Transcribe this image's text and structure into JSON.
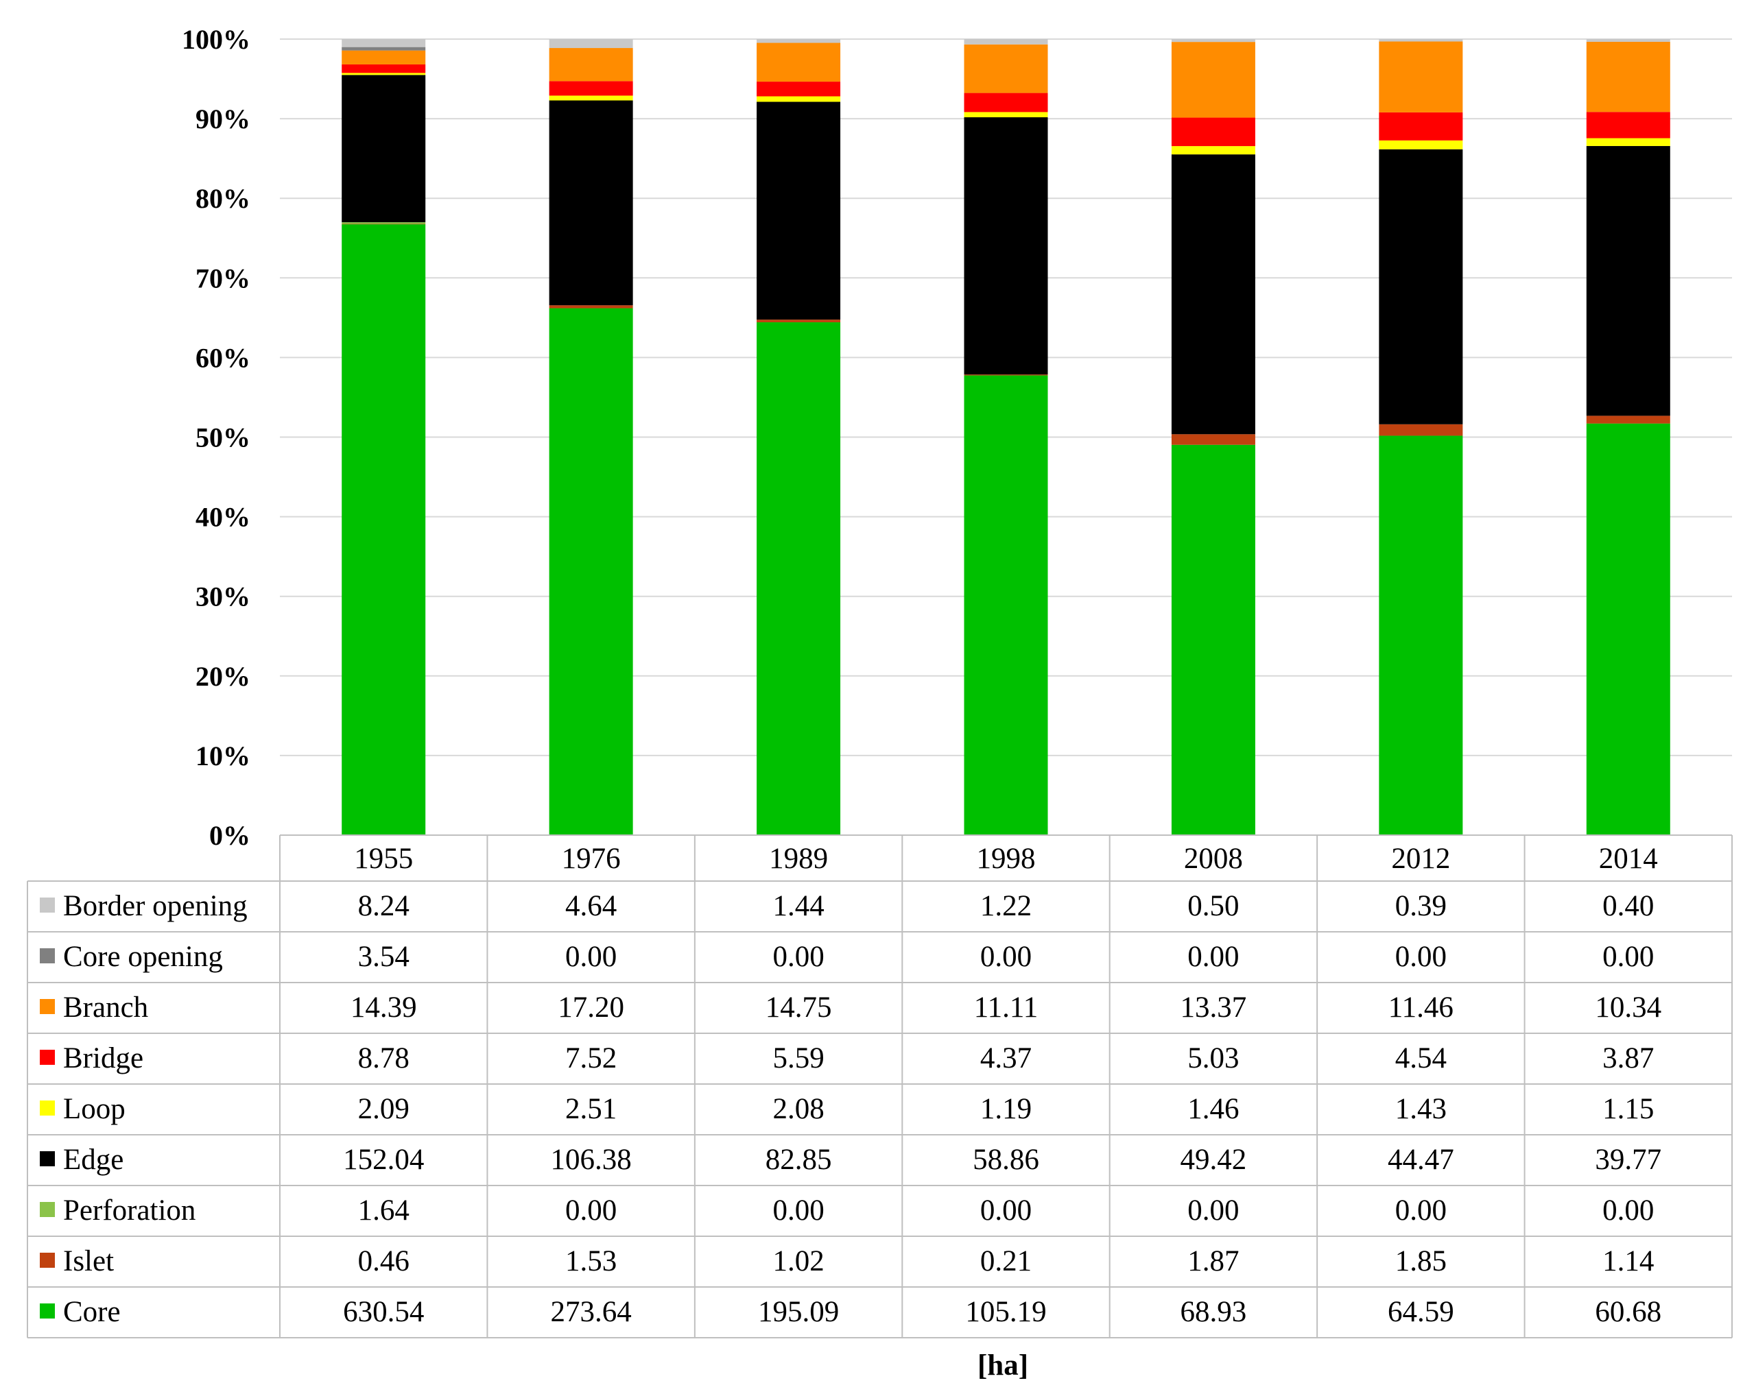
{
  "chart_data": {
    "type": "bar",
    "stacked": "percent",
    "categories": [
      "1955",
      "1976",
      "1989",
      "1998",
      "2008",
      "2012",
      "2014"
    ],
    "series_bottom_to_top": [
      {
        "name": "Core",
        "color": "#00c000",
        "values": [
          630.54,
          273.64,
          195.09,
          105.19,
          68.93,
          64.59,
          60.68
        ]
      },
      {
        "name": "Islet",
        "color": "#c0420f",
        "values": [
          0.46,
          1.53,
          1.02,
          0.21,
          1.87,
          1.85,
          1.14
        ]
      },
      {
        "name": "Perforation",
        "color": "#8bc34a",
        "values": [
          1.64,
          0.0,
          0.0,
          0.0,
          0.0,
          0.0,
          0.0
        ]
      },
      {
        "name": "Edge",
        "color": "#000000",
        "values": [
          152.04,
          106.38,
          82.85,
          58.86,
          49.42,
          44.47,
          39.77
        ]
      },
      {
        "name": "Loop",
        "color": "#ffff00",
        "values": [
          2.09,
          2.51,
          2.08,
          1.19,
          1.46,
          1.43,
          1.15
        ]
      },
      {
        "name": "Bridge",
        "color": "#ff0000",
        "values": [
          8.78,
          7.52,
          5.59,
          4.37,
          5.03,
          4.54,
          3.87
        ]
      },
      {
        "name": "Branch",
        "color": "#ff8c00",
        "values": [
          14.39,
          17.2,
          14.75,
          11.11,
          13.37,
          11.46,
          10.34
        ]
      },
      {
        "name": "Core opening",
        "color": "#808080",
        "values": [
          3.54,
          0.0,
          0.0,
          0.0,
          0.0,
          0.0,
          0.0
        ]
      },
      {
        "name": "Border opening",
        "color": "#c8c8c8",
        "values": [
          8.24,
          4.64,
          1.44,
          1.22,
          0.5,
          0.39,
          0.4
        ]
      }
    ],
    "table_rows_top_to_bottom": [
      {
        "name": "Border opening",
        "color": "#c8c8c8",
        "cells": [
          "8.24",
          "4.64",
          "1.44",
          "1.22",
          "0.50",
          "0.39",
          "0.40"
        ]
      },
      {
        "name": "Core opening",
        "color": "#808080",
        "cells": [
          "3.54",
          "0.00",
          "0.00",
          "0.00",
          "0.00",
          "0.00",
          "0.00"
        ]
      },
      {
        "name": "Branch",
        "color": "#ff8c00",
        "cells": [
          "14.39",
          "17.20",
          "14.75",
          "11.11",
          "13.37",
          "11.46",
          "10.34"
        ]
      },
      {
        "name": "Bridge",
        "color": "#ff0000",
        "cells": [
          "8.78",
          "7.52",
          "5.59",
          "4.37",
          "5.03",
          "4.54",
          "3.87"
        ]
      },
      {
        "name": "Loop",
        "color": "#ffff00",
        "cells": [
          "2.09",
          "2.51",
          "2.08",
          "1.19",
          "1.46",
          "1.43",
          "1.15"
        ]
      },
      {
        "name": "Edge",
        "color": "#000000",
        "cells": [
          "152.04",
          "106.38",
          "82.85",
          "58.86",
          "49.42",
          "44.47",
          "39.77"
        ]
      },
      {
        "name": "Perforation",
        "color": "#8bc34a",
        "cells": [
          "1.64",
          "0.00",
          "0.00",
          "0.00",
          "0.00",
          "0.00",
          "0.00"
        ]
      },
      {
        "name": "Islet",
        "color": "#c0420f",
        "cells": [
          "0.46",
          "1.53",
          "1.02",
          "0.21",
          "1.87",
          "1.85",
          "1.14"
        ]
      },
      {
        "name": "Core",
        "color": "#00c000",
        "cells": [
          "630.54",
          "273.64",
          "195.09",
          "105.19",
          "68.93",
          "64.59",
          "60.68"
        ]
      }
    ],
    "y_ticks": [
      "0%",
      "10%",
      "20%",
      "30%",
      "40%",
      "50%",
      "60%",
      "70%",
      "80%",
      "90%",
      "100%"
    ],
    "ylim": [
      0,
      100
    ],
    "xlabel": "[ha]",
    "ylabel": "",
    "grid": true,
    "legend": "in data table"
  }
}
